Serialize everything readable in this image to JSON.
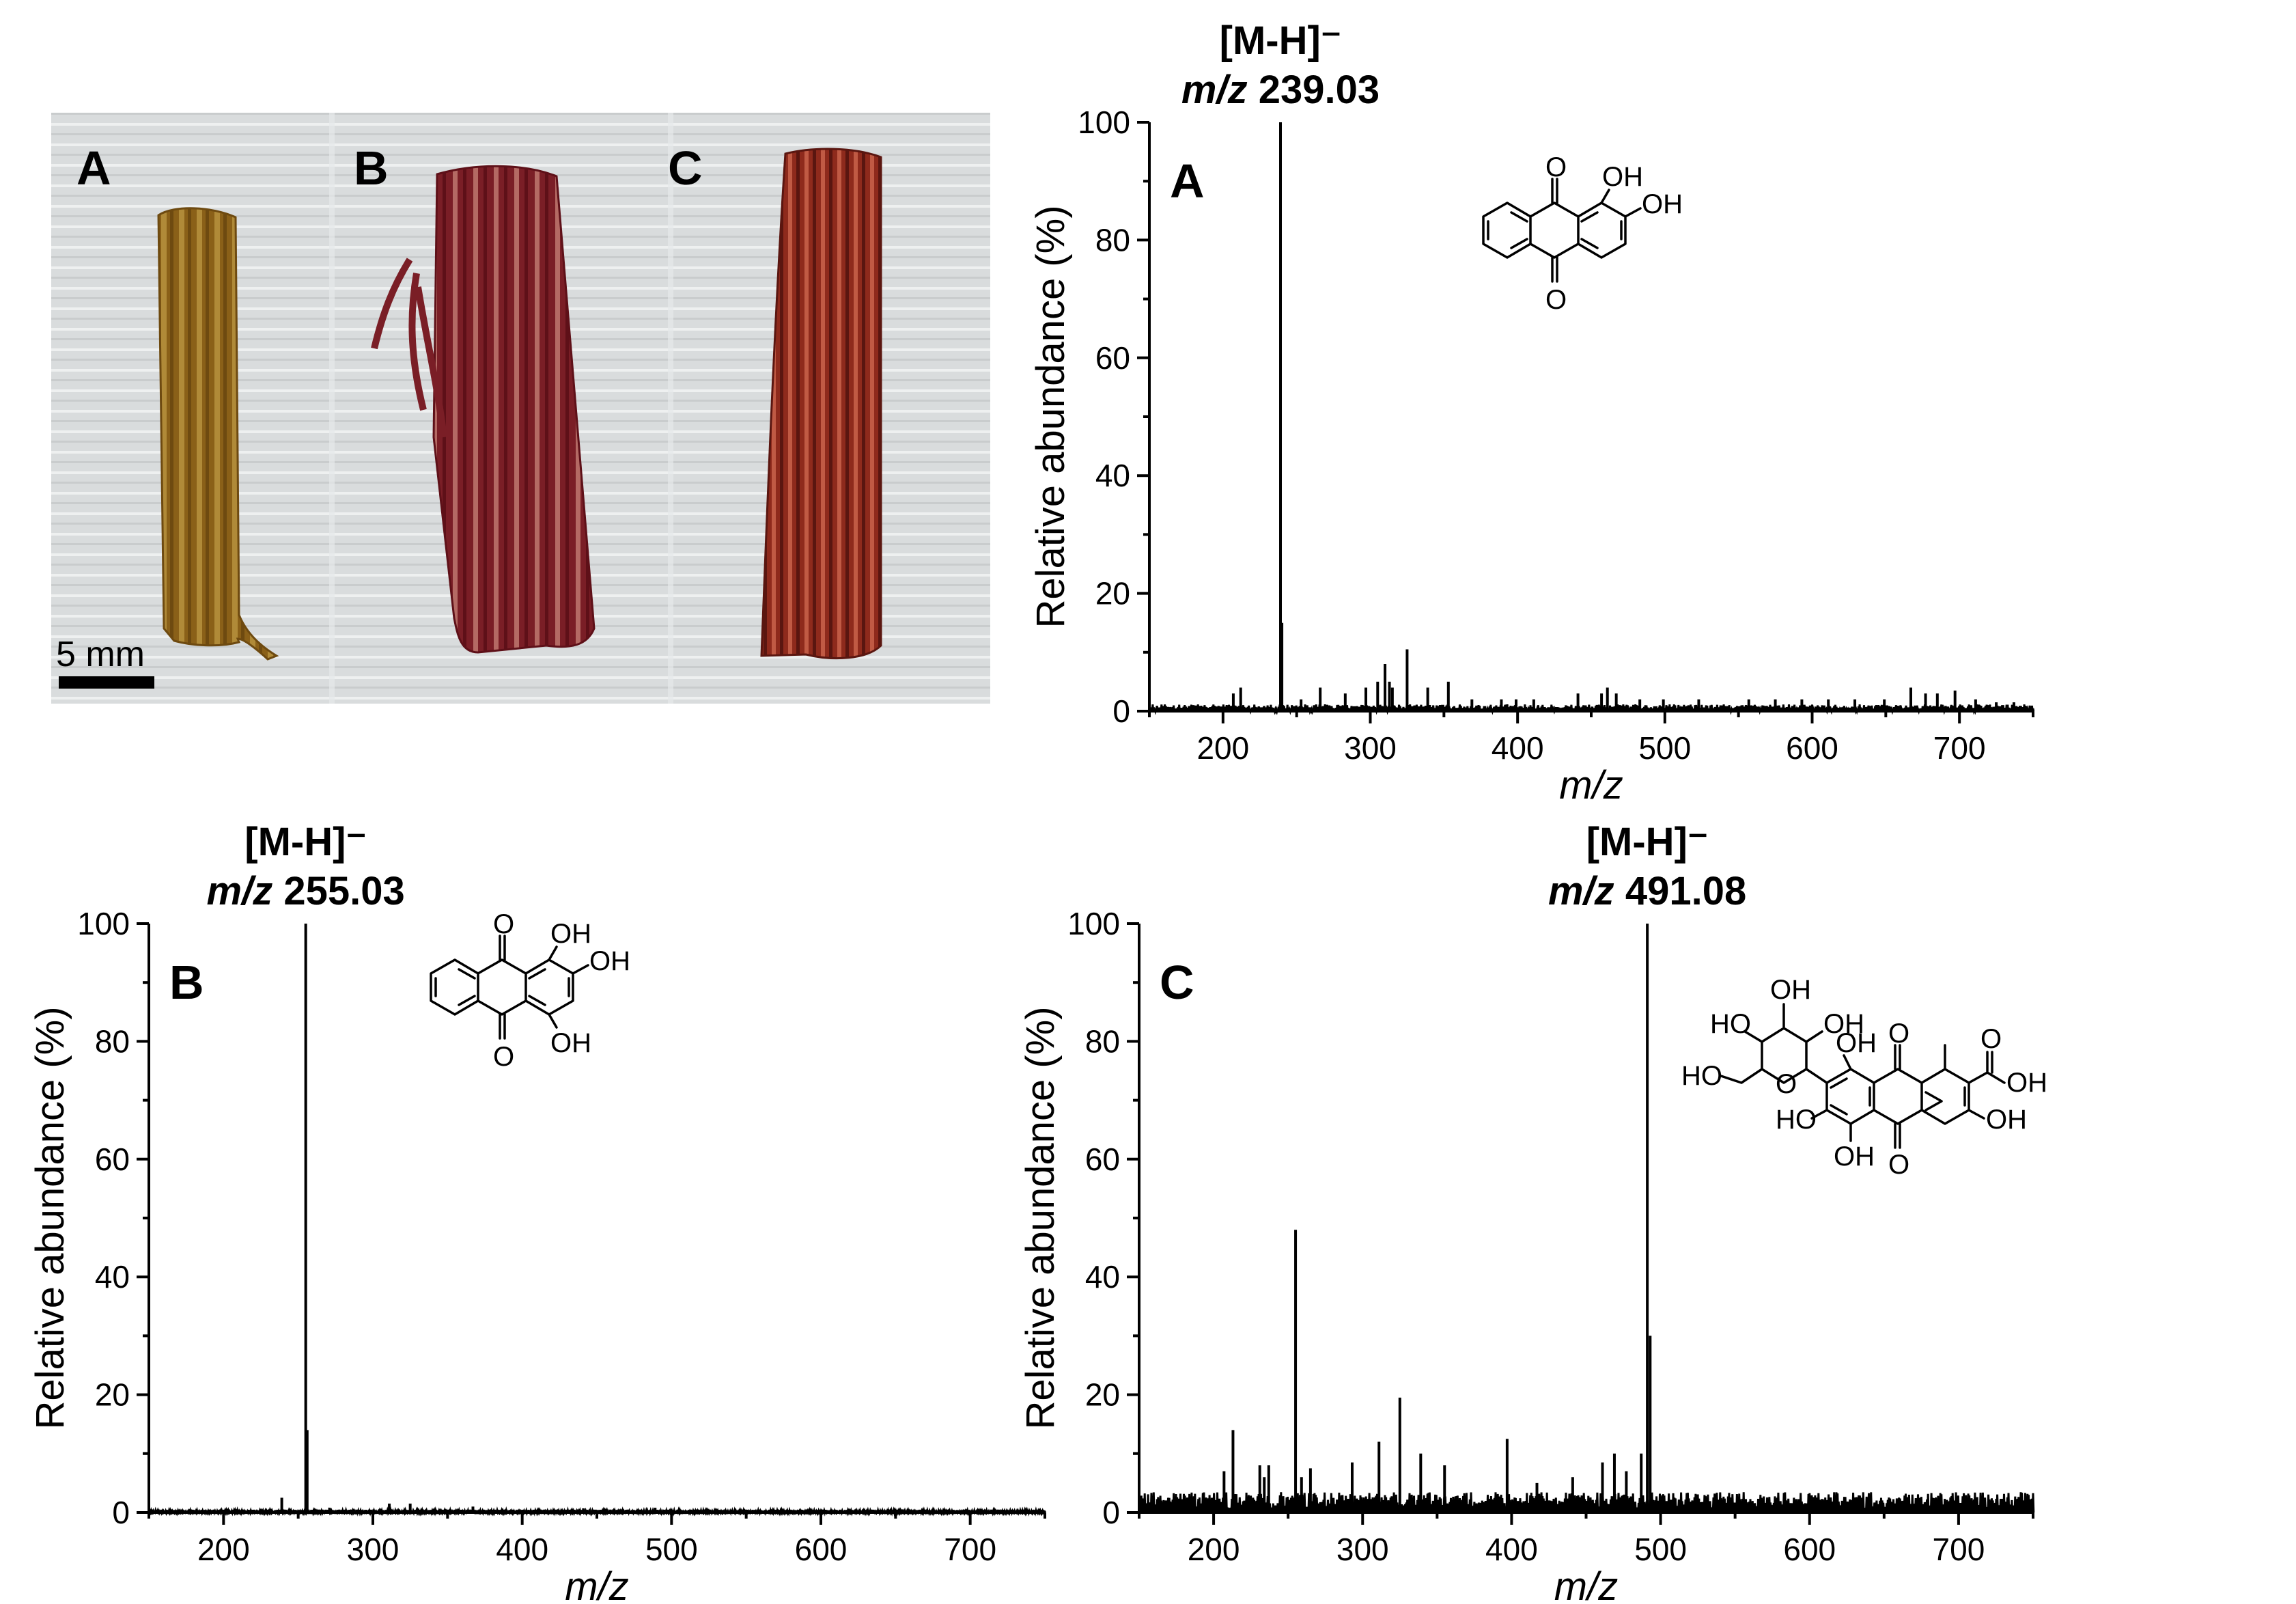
{
  "photo": {
    "labels": [
      "A",
      "B",
      "C"
    ],
    "scale_bar_label": "5 mm",
    "colors": {
      "background": "#d9dcdd",
      "sample_a": "#8a6018",
      "sample_b": "#7a1e26",
      "sample_c": "#8e2a1c"
    }
  },
  "chem_labels": {
    "a": {
      "oh1": "OH",
      "oh2": "OH",
      "o1": "O",
      "o2": "O"
    },
    "b": {
      "oh1": "OH",
      "oh2": "OH",
      "oh3": "OH",
      "o1": "O",
      "o2": "O"
    },
    "c": {
      "oh_top": "OH",
      "ho1": "HO",
      "oh2": "OH",
      "ho_ch2": "HO",
      "ring_o": "O",
      "oh3": "OH",
      "o1": "O",
      "o2": "O",
      "cooh_o": "O",
      "cooh_oh": "OH",
      "ho2": "HO",
      "oh4": "OH",
      "oh5": "OH"
    }
  },
  "chart_data": [
    {
      "panel": "A",
      "type": "bar",
      "ylabel": "Relative abundance (%)",
      "xlabel": "m/z",
      "xlim": [
        150,
        750
      ],
      "ylim": [
        0,
        100
      ],
      "xticks": [
        200,
        300,
        400,
        500,
        600,
        700
      ],
      "yticks": [
        0,
        20,
        40,
        60,
        80,
        100
      ],
      "annotation": {
        "ion": "[M-H]⁻",
        "prefix": "m/z",
        "value": "239.03"
      },
      "peaks": [
        [
          207,
          3
        ],
        [
          212,
          4
        ],
        [
          239.03,
          100
        ],
        [
          240,
          15
        ],
        [
          253,
          2
        ],
        [
          266,
          4
        ],
        [
          283,
          3
        ],
        [
          297,
          4
        ],
        [
          305,
          5
        ],
        [
          310,
          8
        ],
        [
          313,
          5
        ],
        [
          315,
          4
        ],
        [
          325,
          10.5
        ],
        [
          339,
          4
        ],
        [
          353,
          5
        ],
        [
          369,
          2
        ],
        [
          389,
          2
        ],
        [
          399,
          2
        ],
        [
          411,
          2
        ],
        [
          441,
          3
        ],
        [
          457,
          3
        ],
        [
          461,
          4
        ],
        [
          467,
          3
        ],
        [
          483,
          2
        ],
        [
          499,
          2
        ],
        [
          523,
          2
        ],
        [
          557,
          2
        ],
        [
          575,
          2
        ],
        [
          593,
          2
        ],
        [
          611,
          2
        ],
        [
          629,
          2
        ],
        [
          649,
          2
        ],
        [
          667,
          4
        ],
        [
          677,
          3
        ],
        [
          685,
          3
        ],
        [
          697,
          3.5
        ],
        [
          711,
          2
        ],
        [
          725,
          1.5
        ],
        [
          737,
          1.5
        ]
      ],
      "noise_level": 1
    },
    {
      "panel": "B",
      "type": "bar",
      "ylabel": "Relative abundance (%)",
      "xlabel": "m/z",
      "xlim": [
        150,
        750
      ],
      "ylim": [
        0,
        100
      ],
      "xticks": [
        200,
        300,
        400,
        500,
        600,
        700
      ],
      "yticks": [
        0,
        20,
        40,
        60,
        80,
        100
      ],
      "annotation": {
        "ion": "[M-H]⁻",
        "prefix": "m/z",
        "value": "255.03"
      },
      "peaks": [
        [
          239,
          2.5
        ],
        [
          255.03,
          100
        ],
        [
          256,
          14
        ],
        [
          271,
          0.8
        ],
        [
          311,
          1.5
        ],
        [
          325,
          1.5
        ],
        [
          367,
          1
        ],
        [
          441,
          0.7
        ],
        [
          489,
          0.8
        ]
      ],
      "noise_level": 0.4
    },
    {
      "panel": "C",
      "type": "bar",
      "ylabel": "Relative abundance (%)",
      "xlabel": "m/z",
      "xlim": [
        150,
        750
      ],
      "ylim": [
        0,
        100
      ],
      "xticks": [
        200,
        300,
        400,
        500,
        600,
        700
      ],
      "yticks": [
        0,
        20,
        40,
        60,
        80,
        100
      ],
      "annotation": {
        "ion": "[M-H]⁻",
        "prefix": "m/z",
        "value": "491.08"
      },
      "peaks": [
        [
          207,
          7
        ],
        [
          213,
          14
        ],
        [
          231,
          8
        ],
        [
          234,
          6
        ],
        [
          237,
          8
        ],
        [
          255,
          48
        ],
        [
          259,
          6
        ],
        [
          265,
          7.5
        ],
        [
          293,
          8.5
        ],
        [
          311,
          12
        ],
        [
          325,
          19.5
        ],
        [
          339,
          10
        ],
        [
          355,
          8
        ],
        [
          397,
          12.5
        ],
        [
          417,
          5
        ],
        [
          441,
          6
        ],
        [
          461,
          8.5
        ],
        [
          469,
          10
        ],
        [
          477,
          7
        ],
        [
          487,
          10
        ],
        [
          491.08,
          100
        ],
        [
          493,
          30
        ]
      ],
      "noise_level": 3
    }
  ]
}
